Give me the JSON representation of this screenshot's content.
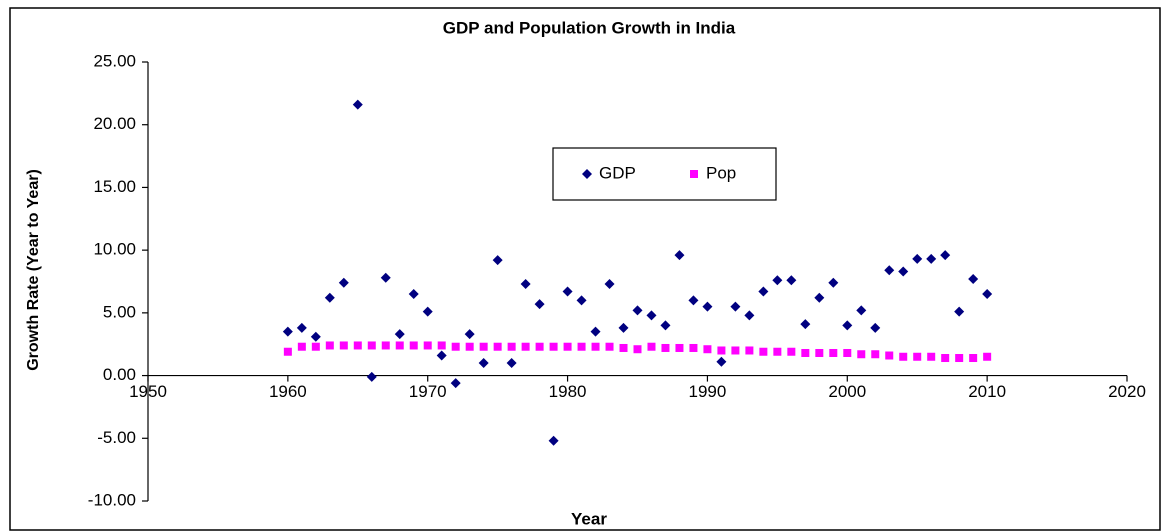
{
  "chart_data": {
    "type": "scatter",
    "title": "GDP and Population Growth in India",
    "xlabel": "Year",
    "ylabel": "Growth Rate (Year to Year)",
    "x": [
      1960,
      1961,
      1962,
      1963,
      1964,
      1965,
      1966,
      1967,
      1968,
      1969,
      1970,
      1971,
      1972,
      1973,
      1974,
      1975,
      1976,
      1977,
      1978,
      1979,
      1980,
      1981,
      1982,
      1983,
      1984,
      1985,
      1986,
      1987,
      1988,
      1989,
      1990,
      1991,
      1992,
      1993,
      1994,
      1995,
      1996,
      1997,
      1998,
      1999,
      2000,
      2001,
      2002,
      2003,
      2004,
      2005,
      2006,
      2007,
      2008,
      2009,
      2010
    ],
    "series": [
      {
        "name": "GDP",
        "color": "#000080",
        "marker": "diamond",
        "values": [
          3.5,
          3.8,
          3.1,
          6.2,
          7.4,
          21.6,
          -0.1,
          7.8,
          3.3,
          6.5,
          5.1,
          1.6,
          -0.6,
          3.3,
          1.0,
          9.2,
          1.0,
          7.3,
          5.7,
          -5.2,
          6.7,
          6.0,
          3.5,
          7.3,
          3.8,
          5.2,
          4.8,
          4.0,
          9.6,
          6.0,
          5.5,
          1.1,
          5.5,
          4.8,
          6.7,
          7.6,
          7.6,
          4.1,
          6.2,
          7.4,
          4.0,
          5.2,
          3.8,
          8.4,
          8.3,
          9.3,
          9.3,
          9.6,
          5.1,
          7.7,
          6.5
        ]
      },
      {
        "name": "Pop",
        "color": "#ff00ff",
        "marker": "square",
        "values": [
          1.9,
          2.3,
          2.3,
          2.4,
          2.4,
          2.4,
          2.4,
          2.4,
          2.4,
          2.4,
          2.4,
          2.4,
          2.3,
          2.3,
          2.3,
          2.3,
          2.3,
          2.3,
          2.3,
          2.3,
          2.3,
          2.3,
          2.3,
          2.3,
          2.2,
          2.1,
          2.3,
          2.2,
          2.2,
          2.2,
          2.1,
          2.0,
          2.0,
          2.0,
          1.9,
          1.9,
          1.9,
          1.8,
          1.8,
          1.8,
          1.8,
          1.7,
          1.7,
          1.6,
          1.5,
          1.5,
          1.5,
          1.4,
          1.4,
          1.4,
          1.5
        ]
      }
    ],
    "xlim": [
      1950,
      2020
    ],
    "xticks": [
      1950,
      1960,
      1970,
      1980,
      1990,
      2000,
      2010,
      2020
    ],
    "ylim": [
      -10,
      25
    ],
    "yticks": [
      {
        "value": -10,
        "label": "-10.00"
      },
      {
        "value": -5,
        "label": "-5.00"
      },
      {
        "value": 0,
        "label": "0.00"
      },
      {
        "value": 5,
        "label": "5.00"
      },
      {
        "value": 10,
        "label": "10.00"
      },
      {
        "value": 15,
        "label": "15.00"
      },
      {
        "value": 20,
        "label": "20.00"
      },
      {
        "value": 25,
        "label": "25.00"
      }
    ]
  }
}
